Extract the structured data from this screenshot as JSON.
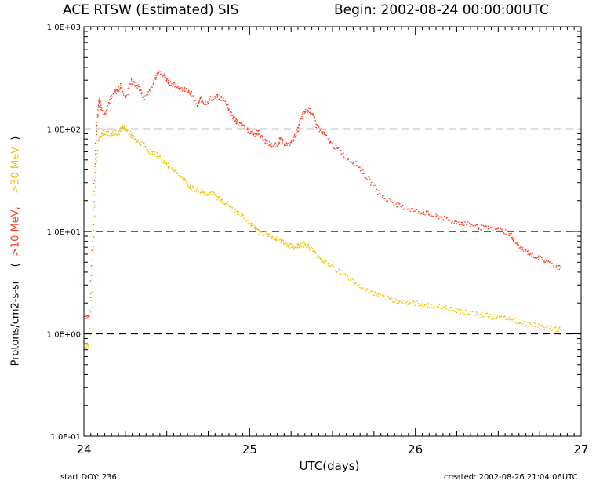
{
  "header": {
    "title": "ACE RTSW (Estimated) SIS",
    "begin": "Begin: 2002-08-24 00:00:00UTC"
  },
  "footer": {
    "start_doy": "start DOY:  236",
    "created": "created: 2002-08-26 21:04:06UTC"
  },
  "colors": {
    "gt10": "#ff3b1f",
    "gt30": "#f0c000",
    "axis": "#000000"
  },
  "chart_data": {
    "type": "scatter",
    "title": "ACE RTSW (Estimated) SIS",
    "xlabel": "UTC(days)",
    "ylabel_parts": [
      "Protons/cm2-s-sr",
      "(",
      ">10 MeV,",
      ">30 MeV",
      ")"
    ],
    "xlim": [
      24,
      27
    ],
    "ylim": [
      0.1,
      1000
    ],
    "yscale": "log",
    "x_ticks": [
      "24",
      "25",
      "26",
      "27"
    ],
    "y_ticks": [
      "1.0E-01",
      "1.0E+00",
      "1.0E+01",
      "1.0E+02",
      "1.0E+03"
    ],
    "reference_lines": [
      1,
      10,
      100
    ],
    "series": [
      {
        "name": ">10 MeV",
        "color": "#ff3b1f",
        "points": [
          [
            24.0,
            1.5
          ],
          [
            24.03,
            1.5
          ],
          [
            24.05,
            8
          ],
          [
            24.06,
            30
          ],
          [
            24.07,
            80
          ],
          [
            24.08,
            150
          ],
          [
            24.09,
            200
          ],
          [
            24.1,
            170
          ],
          [
            24.12,
            140
          ],
          [
            24.15,
            190
          ],
          [
            24.18,
            230
          ],
          [
            24.2,
            240
          ],
          [
            24.22,
            270
          ],
          [
            24.25,
            200
          ],
          [
            24.28,
            300
          ],
          [
            24.3,
            280
          ],
          [
            24.33,
            260
          ],
          [
            24.36,
            200
          ],
          [
            24.4,
            250
          ],
          [
            24.43,
            320
          ],
          [
            24.45,
            380
          ],
          [
            24.48,
            340
          ],
          [
            24.5,
            300
          ],
          [
            24.53,
            280
          ],
          [
            24.56,
            260
          ],
          [
            24.6,
            250
          ],
          [
            24.63,
            240
          ],
          [
            24.65,
            220
          ],
          [
            24.68,
            170
          ],
          [
            24.7,
            200
          ],
          [
            24.73,
            180
          ],
          [
            24.76,
            200
          ],
          [
            24.8,
            210
          ],
          [
            24.83,
            200
          ],
          [
            24.86,
            180
          ],
          [
            24.88,
            150
          ],
          [
            24.9,
            130
          ],
          [
            24.92,
            120
          ],
          [
            24.95,
            110
          ],
          [
            24.98,
            100
          ],
          [
            25.0,
            95
          ],
          [
            25.03,
            90
          ],
          [
            25.05,
            95
          ],
          [
            25.08,
            80
          ],
          [
            25.1,
            75
          ],
          [
            25.13,
            70
          ],
          [
            25.16,
            70
          ],
          [
            25.18,
            80
          ],
          [
            25.2,
            75
          ],
          [
            25.23,
            70
          ],
          [
            25.26,
            80
          ],
          [
            25.28,
            90
          ],
          [
            25.3,
            120
          ],
          [
            25.33,
            150
          ],
          [
            25.36,
            155
          ],
          [
            25.38,
            140
          ],
          [
            25.4,
            110
          ],
          [
            25.43,
            95
          ],
          [
            25.46,
            85
          ],
          [
            25.5,
            70
          ],
          [
            25.55,
            60
          ],
          [
            25.6,
            50
          ],
          [
            25.65,
            45
          ],
          [
            25.7,
            35
          ],
          [
            25.75,
            27
          ],
          [
            25.8,
            22
          ],
          [
            25.85,
            20
          ],
          [
            25.9,
            18
          ],
          [
            25.95,
            17
          ],
          [
            26.0,
            16
          ],
          [
            26.05,
            15.5
          ],
          [
            26.1,
            14.5
          ],
          [
            26.15,
            14
          ],
          [
            26.2,
            13
          ],
          [
            26.25,
            12.5
          ],
          [
            26.3,
            12
          ],
          [
            26.35,
            11.5
          ],
          [
            26.4,
            11
          ],
          [
            26.45,
            10.8
          ],
          [
            26.5,
            10.5
          ],
          [
            26.55,
            10
          ],
          [
            26.58,
            9
          ],
          [
            26.6,
            8
          ],
          [
            26.63,
            7
          ],
          [
            26.66,
            6.5
          ],
          [
            26.7,
            6
          ],
          [
            26.75,
            5.5
          ],
          [
            26.8,
            5
          ],
          [
            26.85,
            4.6
          ],
          [
            26.88,
            4.4
          ]
        ]
      },
      {
        "name": ">30 MeV",
        "color": "#f0c000",
        "points": [
          [
            24.0,
            0.75
          ],
          [
            24.03,
            0.75
          ],
          [
            24.05,
            3
          ],
          [
            24.06,
            15
          ],
          [
            24.07,
            40
          ],
          [
            24.08,
            70
          ],
          [
            24.1,
            90
          ],
          [
            24.12,
            95
          ],
          [
            24.15,
            90
          ],
          [
            24.18,
            95
          ],
          [
            24.2,
            90
          ],
          [
            24.23,
            105
          ],
          [
            24.25,
            100
          ],
          [
            24.28,
            90
          ],
          [
            24.3,
            80
          ],
          [
            24.33,
            75
          ],
          [
            24.36,
            70
          ],
          [
            24.4,
            60
          ],
          [
            24.43,
            58
          ],
          [
            24.46,
            52
          ],
          [
            24.5,
            45
          ],
          [
            24.53,
            42
          ],
          [
            24.56,
            38
          ],
          [
            24.6,
            32
          ],
          [
            24.63,
            28
          ],
          [
            24.66,
            26
          ],
          [
            24.7,
            25
          ],
          [
            24.73,
            24
          ],
          [
            24.76,
            24
          ],
          [
            24.8,
            22
          ],
          [
            24.83,
            20
          ],
          [
            24.86,
            19
          ],
          [
            24.9,
            17
          ],
          [
            24.93,
            15
          ],
          [
            24.96,
            14
          ],
          [
            25.0,
            12
          ],
          [
            25.03,
            11
          ],
          [
            25.06,
            10
          ],
          [
            25.1,
            9.5
          ],
          [
            25.13,
            9
          ],
          [
            25.16,
            8.5
          ],
          [
            25.2,
            8
          ],
          [
            25.23,
            7.5
          ],
          [
            25.26,
            7
          ],
          [
            25.28,
            7.2
          ],
          [
            25.3,
            7.5
          ],
          [
            25.33,
            7.6
          ],
          [
            25.36,
            7
          ],
          [
            25.4,
            6
          ],
          [
            25.43,
            5.5
          ],
          [
            25.46,
            5
          ],
          [
            25.5,
            4.5
          ],
          [
            25.55,
            4
          ],
          [
            25.6,
            3.5
          ],
          [
            25.65,
            3
          ],
          [
            25.7,
            2.7
          ],
          [
            25.75,
            2.5
          ],
          [
            25.8,
            2.3
          ],
          [
            25.85,
            2.2
          ],
          [
            25.9,
            2.1
          ],
          [
            25.95,
            2.05
          ],
          [
            26.0,
            2
          ],
          [
            26.05,
            1.95
          ],
          [
            26.1,
            1.9
          ],
          [
            26.15,
            1.85
          ],
          [
            26.2,
            1.8
          ],
          [
            26.25,
            1.7
          ],
          [
            26.3,
            1.65
          ],
          [
            26.35,
            1.6
          ],
          [
            26.4,
            1.55
          ],
          [
            26.45,
            1.5
          ],
          [
            26.5,
            1.45
          ],
          [
            26.55,
            1.4
          ],
          [
            26.6,
            1.35
          ],
          [
            26.65,
            1.3
          ],
          [
            26.7,
            1.25
          ],
          [
            26.75,
            1.2
          ],
          [
            26.8,
            1.15
          ],
          [
            26.85,
            1.12
          ],
          [
            26.88,
            1.1
          ]
        ]
      }
    ]
  }
}
